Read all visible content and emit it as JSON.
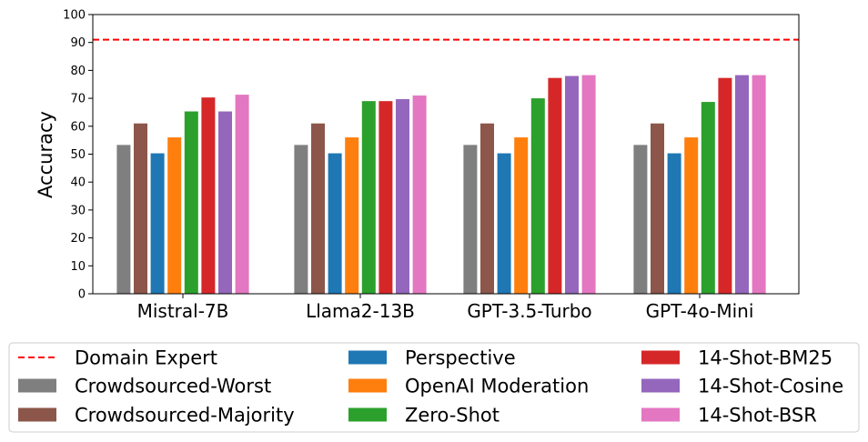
{
  "chart_data": {
    "type": "bar",
    "title": "",
    "xlabel": "",
    "ylabel": "Accuracy",
    "ylim": [
      0,
      100
    ],
    "yticks": [
      0,
      10,
      20,
      30,
      40,
      50,
      60,
      70,
      80,
      90,
      100
    ],
    "grid": false,
    "legend_position": "bottom",
    "categories": [
      "Mistral-7B",
      "Llama2-13B",
      "GPT-3.5-Turbo",
      "GPT-4o-Mini"
    ],
    "reference_line": {
      "name": "Domain Expert",
      "value": 91,
      "color": "#ff0000",
      "style": "dashed"
    },
    "series": [
      {
        "name": "Crowdsourced-Worst",
        "color": "#7f7f7f",
        "values": [
          53.3,
          53.3,
          53.3,
          53.3
        ]
      },
      {
        "name": "Crowdsourced-Majority",
        "color": "#8c564b",
        "values": [
          61.0,
          61.0,
          61.0,
          61.0
        ]
      },
      {
        "name": "Perspective",
        "color": "#1f77b4",
        "values": [
          50.3,
          50.3,
          50.3,
          50.3
        ]
      },
      {
        "name": "OpenAI Moderation",
        "color": "#ff7f0e",
        "values": [
          56.0,
          56.0,
          56.0,
          56.0
        ]
      },
      {
        "name": "Zero-Shot",
        "color": "#2ca02c",
        "values": [
          65.3,
          69.0,
          70.0,
          68.7
        ]
      },
      {
        "name": "14-Shot-BM25",
        "color": "#d62728",
        "values": [
          70.3,
          69.0,
          77.3,
          77.3
        ]
      },
      {
        "name": "14-Shot-Cosine",
        "color": "#9467bd",
        "values": [
          65.3,
          69.7,
          78.0,
          78.3
        ]
      },
      {
        "name": "14-Shot-BSR",
        "color": "#e377c2",
        "values": [
          71.3,
          71.0,
          78.3,
          78.3
        ]
      }
    ],
    "legend_order": [
      [
        "Domain Expert",
        "Crowdsourced-Worst",
        "Crowdsourced-Majority"
      ],
      [
        "Perspective",
        "OpenAI Moderation",
        "Zero-Shot"
      ],
      [
        "14-Shot-BM25",
        "14-Shot-Cosine",
        "14-Shot-BSR"
      ]
    ]
  }
}
